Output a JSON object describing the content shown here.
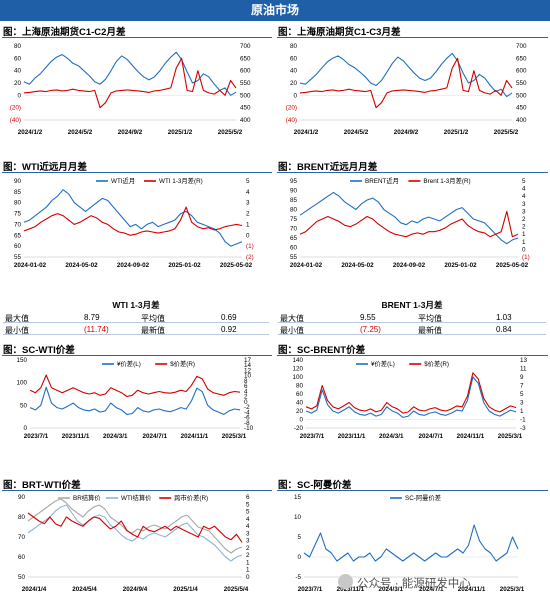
{
  "header": {
    "title": "原油市场"
  },
  "sections": {
    "s1": "图：上海原油期货C1-C2月差",
    "s2": "图：上海原油期货C1-C3月差",
    "s3": "图：WTI近远月月差",
    "s4": "图：BRENT近远月月差",
    "s5": "图：SC-WTI价差",
    "s6": "图：SC-BRENT价差",
    "s7": "图：BRT-WTI价差",
    "s8": "图：SC-阿曼价差"
  },
  "stats": {
    "wti": {
      "title": "WTI 1-3月差",
      "max_label": "最大值",
      "max": "8.79",
      "avg_label": "平均值",
      "avg": "0.69",
      "min_label": "最小值",
      "min": "(11.74)",
      "latest_label": "最新值",
      "latest": "0.92"
    },
    "brent": {
      "title": "BRENT 1-3月差",
      "max_label": "最大值",
      "max": "9.55",
      "avg_label": "平均值",
      "avg": "1.03",
      "min_label": "最小值",
      "min": "(7.25)",
      "latest_label": "最新值",
      "latest": "0.84"
    }
  },
  "watermark": {
    "text": "公众号 · 能源研发中心"
  },
  "colors": {
    "blue": "#1f6fc4",
    "red": "#d40000",
    "header": "#1f5fa8"
  },
  "chart_data": [
    {
      "id": "sc-c1c2",
      "type": "line",
      "x_ticks": [
        "2024/1/2",
        "2024/5/2",
        "2024/9/2",
        "2025/1/2",
        "2025/5/2"
      ],
      "y_left_ticks": [
        "(40)",
        "(20)",
        "0",
        "20",
        "40",
        "60",
        "80"
      ],
      "ylim_left": [
        -40,
        80
      ],
      "y_right_ticks": [
        "400",
        "450",
        "500",
        "550",
        "600",
        "650",
        "700"
      ],
      "ylim_right": [
        400,
        700
      ],
      "series": [
        {
          "axis": "left",
          "color": "blue",
          "values": [
            22,
            18,
            28,
            35,
            45,
            55,
            62,
            66,
            60,
            52,
            48,
            40,
            32,
            22,
            18,
            26,
            40,
            55,
            64,
            58,
            48,
            38,
            30,
            25,
            30,
            40,
            52,
            62,
            70,
            58,
            38,
            20,
            24,
            35,
            30,
            18,
            8,
            12,
            0,
            5
          ]
        },
        {
          "axis": "right",
          "color": "red",
          "values": [
            510,
            512,
            515,
            518,
            515,
            520,
            522,
            518,
            520,
            525,
            520,
            518,
            515,
            520,
            450,
            470,
            510,
            518,
            520,
            522,
            520,
            518,
            515,
            512,
            518,
            520,
            525,
            530,
            610,
            650,
            520,
            515,
            600,
            520,
            510,
            505,
            520,
            500,
            560,
            530
          ]
        }
      ]
    },
    {
      "id": "sc-c1c3",
      "type": "line",
      "x_ticks": [
        "2024/1/2",
        "2024/5/2",
        "2024/9/2",
        "2025/1/2",
        "2025/5/2"
      ],
      "y_left_ticks": [
        "(40)",
        "(20)",
        "0",
        "20",
        "40",
        "60",
        "80"
      ],
      "ylim_left": [
        -40,
        80
      ],
      "y_right_ticks": [
        "400",
        "450",
        "500",
        "550",
        "600",
        "650",
        "700"
      ],
      "ylim_right": [
        400,
        700
      ],
      "series": [
        {
          "axis": "left",
          "color": "blue",
          "values": [
            20,
            18,
            26,
            34,
            44,
            54,
            60,
            64,
            58,
            50,
            45,
            38,
            30,
            20,
            16,
            24,
            38,
            52,
            62,
            56,
            46,
            36,
            28,
            24,
            28,
            38,
            50,
            60,
            68,
            56,
            36,
            20,
            24,
            34,
            28,
            16,
            6,
            10,
            -2,
            4
          ]
        },
        {
          "axis": "right",
          "color": "red",
          "values": [
            510,
            512,
            515,
            518,
            515,
            520,
            522,
            518,
            520,
            525,
            520,
            518,
            515,
            520,
            450,
            470,
            510,
            518,
            520,
            522,
            520,
            518,
            515,
            512,
            518,
            520,
            525,
            530,
            610,
            650,
            520,
            515,
            600,
            520,
            510,
            505,
            520,
            500,
            560,
            530
          ]
        }
      ]
    },
    {
      "id": "wti-spread",
      "type": "line",
      "x_ticks": [
        "2024-01-02",
        "2024-05-02",
        "2024-09-02",
        "2025-01-02",
        "2025-05-02"
      ],
      "y_left_ticks": [
        "55",
        "60",
        "65",
        "70",
        "75",
        "80",
        "85",
        "90"
      ],
      "ylim_left": [
        55,
        90
      ],
      "y_right_ticks": [
        "(2)",
        "(1)",
        "0",
        "1",
        "2",
        "3",
        "4",
        "5"
      ],
      "ylim_right": [
        -2,
        5
      ],
      "legend": [
        "WTI近月",
        "WTI 1-3月差(R)"
      ],
      "series": [
        {
          "name": "WTI近月",
          "axis": "left",
          "color": "blue",
          "values": [
            71,
            72,
            74,
            76,
            78,
            81,
            83,
            86,
            84,
            80,
            78,
            76,
            78,
            80,
            82,
            81,
            78,
            75,
            72,
            69,
            70,
            68,
            70,
            71,
            69,
            70,
            71,
            72,
            75,
            76,
            74,
            71,
            70,
            69,
            68,
            66,
            62,
            60,
            61,
            62
          ]
        },
        {
          "name": "WTI 1-3月差(R)",
          "axis": "right",
          "color": "red",
          "values": [
            0.4,
            0.6,
            0.8,
            1.2,
            1.5,
            1.8,
            2.0,
            1.8,
            1.4,
            1.0,
            1.2,
            1.5,
            1.8,
            1.6,
            1.2,
            1.0,
            0.6,
            0.3,
            0.2,
            0.0,
            0.1,
            0.3,
            0.4,
            0.3,
            0.2,
            0.3,
            0.4,
            0.6,
            1.4,
            2.6,
            1.2,
            0.8,
            0.6,
            0.7,
            0.5,
            0.6,
            0.8,
            0.9,
            1.0,
            0.9
          ]
        }
      ]
    },
    {
      "id": "brent-spread",
      "type": "line",
      "x_ticks": [
        "2024-01-02",
        "2024-05-02",
        "2024-09-02",
        "2025-01-02",
        "2025-05-02"
      ],
      "y_left_ticks": [
        "55",
        "60",
        "65",
        "70",
        "75",
        "80",
        "85",
        "90",
        "95"
      ],
      "ylim_left": [
        55,
        95
      ],
      "y_right_ticks": [
        "(1)",
        "0",
        "1",
        "1",
        "2",
        "2",
        "3",
        "3",
        "4",
        "4",
        "5"
      ],
      "ylim_right": [
        -1,
        5
      ],
      "legend": [
        "BRENT近月",
        "Brent 1-3月差(R)"
      ],
      "series": [
        {
          "name": "BRENT近月",
          "axis": "left",
          "color": "blue",
          "values": [
            77,
            79,
            81,
            83,
            85,
            87,
            89,
            87,
            84,
            82,
            80,
            83,
            85,
            86,
            84,
            80,
            78,
            76,
            73,
            72,
            74,
            73,
            75,
            76,
            75,
            74,
            76,
            78,
            80,
            81,
            78,
            75,
            74,
            73,
            70,
            67,
            64,
            62,
            64,
            65
          ]
        },
        {
          "name": "Brent 1-3月差(R)",
          "axis": "right",
          "color": "red",
          "values": [
            0.8,
            1.0,
            1.4,
            1.8,
            2.0,
            2.2,
            2.0,
            1.8,
            1.5,
            1.4,
            1.6,
            1.9,
            2.2,
            2.0,
            1.6,
            1.3,
            1.0,
            0.8,
            0.7,
            0.6,
            0.8,
            0.9,
            0.8,
            1.0,
            1.0,
            1.1,
            1.3,
            1.6,
            1.8,
            2.0,
            1.5,
            1.2,
            1.0,
            0.9,
            0.6,
            0.8,
            1.0,
            2.6,
            0.6,
            0.8
          ]
        }
      ]
    },
    {
      "id": "sc-wti",
      "type": "line",
      "x_ticks": [
        "2023/7/1",
        "2023/11/1",
        "2024/3/1",
        "2024/7/1",
        "2024/11/1",
        "2025/3/1"
      ],
      "y_left_ticks": [
        "0",
        "50",
        "100",
        "150"
      ],
      "ylim_left": [
        0,
        150
      ],
      "y_right_ticks": [
        "-10",
        "-8",
        "-6",
        "-4",
        "-2",
        "0",
        "2",
        "4",
        "6",
        "8",
        "10",
        "12",
        "14",
        "17"
      ],
      "ylim_right": [
        -10,
        17
      ],
      "legend": [
        "¥价差(L)",
        "$价差(R)"
      ],
      "series": [
        {
          "name": "¥价差(L)",
          "axis": "left",
          "color": "blue",
          "values": [
            45,
            40,
            50,
            90,
            55,
            45,
            42,
            48,
            55,
            45,
            40,
            38,
            42,
            35,
            38,
            55,
            45,
            40,
            30,
            32,
            45,
            38,
            35,
            40,
            42,
            38,
            36,
            40,
            45,
            42,
            60,
            88,
            80,
            50,
            40,
            35,
            30,
            38,
            42,
            40
          ]
        },
        {
          "name": "$价差(R)",
          "axis": "right",
          "color": "red",
          "values": [
            5,
            4,
            6,
            11,
            6,
            5,
            4,
            5,
            6,
            5,
            4,
            3.5,
            4,
            3,
            3.5,
            6,
            5,
            4,
            2.5,
            3,
            5,
            4,
            3.5,
            4,
            4.5,
            4,
            3.8,
            4.2,
            5,
            4.5,
            7,
            10.5,
            9.5,
            5.5,
            4,
            3.5,
            3,
            4,
            4.5,
            4.2
          ]
        }
      ]
    },
    {
      "id": "sc-brent",
      "type": "line",
      "x_ticks": [
        "2023/7/1",
        "2023/11/1",
        "2024/3/1",
        "2024/7/1",
        "2024/11/1",
        "2025/3/1"
      ],
      "y_left_ticks": [
        "-20",
        "0",
        "20",
        "40",
        "60",
        "80",
        "100",
        "120",
        "140"
      ],
      "ylim_left": [
        -20,
        140
      ],
      "y_right_ticks": [
        "-3",
        "-1",
        "1",
        "3",
        "5",
        "7",
        "9",
        "11",
        "13"
      ],
      "ylim_right": [
        -3,
        13
      ],
      "legend": [
        "¥价差(L)",
        "$价差(R)"
      ],
      "series": [
        {
          "name": "¥价差(L)",
          "axis": "left",
          "color": "blue",
          "values": [
            20,
            15,
            22,
            70,
            35,
            20,
            15,
            22,
            30,
            18,
            12,
            10,
            15,
            8,
            12,
            30,
            20,
            15,
            5,
            8,
            20,
            12,
            10,
            15,
            18,
            12,
            10,
            15,
            22,
            20,
            45,
            100,
            85,
            40,
            20,
            12,
            8,
            15,
            22,
            18
          ]
        },
        {
          "name": "$价差(R)",
          "axis": "right",
          "color": "red",
          "values": [
            2,
            1.5,
            2.2,
            7,
            3.5,
            2,
            1.5,
            2.2,
            3,
            1.8,
            1.2,
            1,
            1.5,
            0.8,
            1.2,
            3,
            2,
            1.5,
            0.5,
            0.8,
            2,
            1.2,
            1,
            1.5,
            1.8,
            1.2,
            1,
            1.5,
            2.2,
            2,
            4.5,
            10,
            8.5,
            4,
            2,
            1.2,
            0.8,
            1.5,
            2.2,
            1.8
          ]
        }
      ]
    },
    {
      "id": "brt-wti",
      "type": "line",
      "x_ticks": [
        "2024/1/4",
        "2024/5/4",
        "2024/9/4",
        "2025/1/4",
        "2025/5/4"
      ],
      "y_left_ticks": [
        "50",
        "60",
        "70",
        "80",
        "90"
      ],
      "ylim_left": [
        50,
        90
      ],
      "y_right_ticks": [
        "0",
        "1",
        "1",
        "2",
        "2",
        "3",
        "3",
        "4",
        "4",
        "5",
        "5",
        "6"
      ],
      "ylim_right": [
        0,
        6
      ],
      "legend": [
        "BR结算价",
        "WTI结算价",
        "跨市价差(R)"
      ],
      "series": [
        {
          "name": "BR结算价",
          "axis": "left",
          "color": "lightgray",
          "values": [
            78,
            80,
            82,
            84,
            86,
            88,
            89,
            87,
            84,
            82,
            80,
            83,
            85,
            86,
            84,
            80,
            78,
            76,
            73,
            72,
            74,
            73,
            75,
            76,
            75,
            74,
            76,
            78,
            80,
            81,
            78,
            75,
            74,
            73,
            70,
            67,
            64,
            62,
            64,
            65
          ]
        },
        {
          "name": "WTI结算价",
          "axis": "left",
          "color": "lightblue",
          "values": [
            72,
            74,
            76,
            78,
            80,
            83,
            85,
            86,
            82,
            78,
            76,
            78,
            80,
            81,
            80,
            76,
            74,
            71,
            69,
            68,
            70,
            69,
            71,
            72,
            71,
            70,
            72,
            74,
            76,
            77,
            74,
            71,
            70,
            68,
            66,
            63,
            60,
            58,
            60,
            61
          ]
        },
        {
          "name": "跨市价差(R)",
          "axis": "right",
          "color": "red",
          "values": [
            4.8,
            4.5,
            4.2,
            4.0,
            4.5,
            4.0,
            3.8,
            4.5,
            4.2,
            4.0,
            3.8,
            4.2,
            4.5,
            4.4,
            4.0,
            3.6,
            3.8,
            4.2,
            3.5,
            3.2,
            3.0,
            3.8,
            3.5,
            3.4,
            3.6,
            3.8,
            3.5,
            3.8,
            3.6,
            3.4,
            3.2,
            3.0,
            3.8,
            3.6,
            3.8,
            3.4,
            3.0,
            2.8,
            3.2,
            2.6
          ]
        }
      ]
    },
    {
      "id": "sc-oman",
      "type": "line",
      "x_ticks": [
        "2023/7/1",
        "2023/11/1",
        "2024/3/1",
        "2024/7/1",
        "2024/11/1",
        "2025/3/1"
      ],
      "y_left_ticks": [
        "-5",
        "0",
        "5",
        "10",
        "15"
      ],
      "ylim_left": [
        -5,
        15
      ],
      "legend": [
        "SC-阿曼价差"
      ],
      "series": [
        {
          "name": "SC-阿曼价差",
          "axis": "left",
          "color": "blue",
          "values": [
            1,
            0,
            3,
            6,
            2,
            1,
            -1,
            0,
            1,
            -1,
            0,
            0,
            1,
            -1,
            0,
            2,
            1,
            0,
            -1,
            0,
            1,
            0,
            -1,
            0,
            1,
            0,
            0,
            1,
            2,
            1,
            3,
            8,
            4,
            2,
            1,
            -1,
            0,
            1,
            5,
            2
          ]
        }
      ]
    }
  ]
}
